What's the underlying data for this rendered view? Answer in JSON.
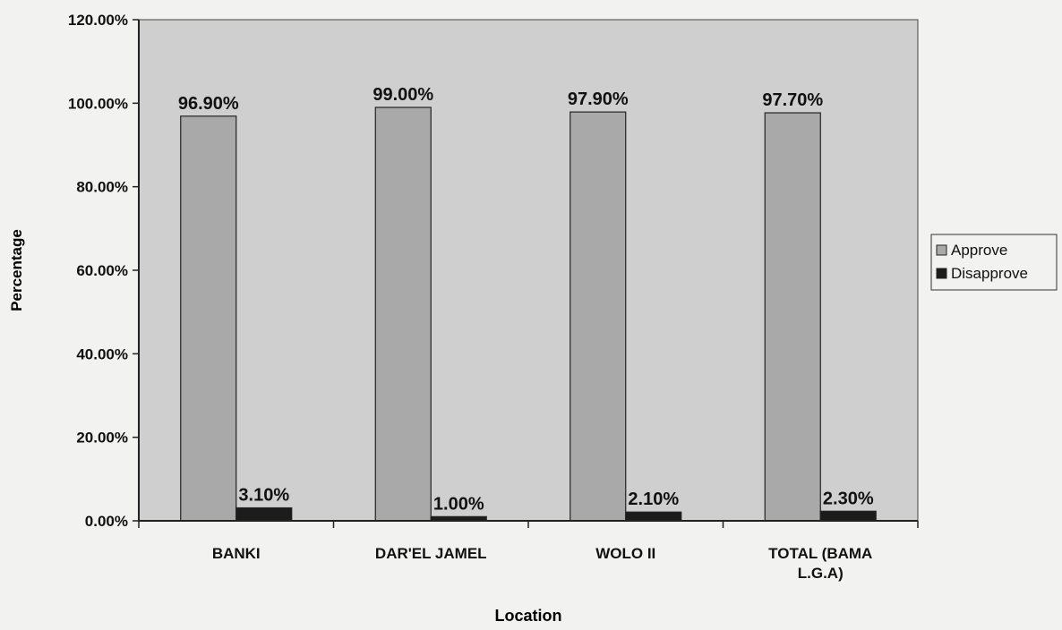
{
  "chart_data": {
    "type": "bar",
    "categories": [
      "BANKI",
      "DAR'EL JAMEL",
      "WOLO II",
      "TOTAL (BAMA L.G.A)"
    ],
    "series": [
      {
        "name": "Approve",
        "values": [
          96.9,
          99.0,
          97.9,
          97.7
        ],
        "labels": [
          "96.90%",
          "99.00%",
          "97.90%",
          "97.70%"
        ],
        "color": "#a9a9a9"
      },
      {
        "name": "Disapprove",
        "values": [
          3.1,
          1.0,
          2.1,
          2.3
        ],
        "labels": [
          "3.10%",
          "1.00%",
          "2.10%",
          "2.30%"
        ],
        "color": "#1c1c1c"
      }
    ],
    "xlabel": "Location",
    "ylabel": "Percentage",
    "ylim": [
      0,
      120
    ],
    "yticks": [
      0,
      20,
      40,
      60,
      80,
      100,
      120
    ],
    "ytick_labels": [
      "0.00%",
      "20.00%",
      "40.00%",
      "60.00%",
      "80.00%",
      "100.00%",
      "120.00%"
    ],
    "grid": false,
    "legend_position": "right",
    "plot_background": "#cfcfcf"
  }
}
